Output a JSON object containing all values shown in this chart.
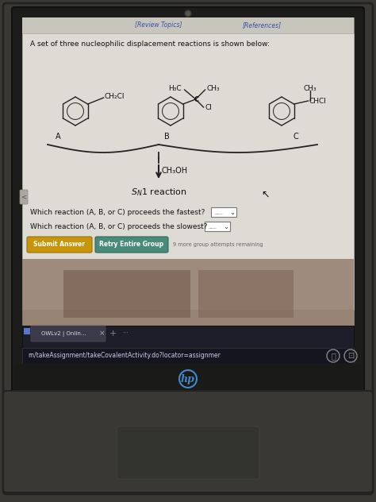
{
  "bg_outer": "#3a3835",
  "bg_laptop_body": "#2a2a28",
  "bg_screen_bezel": "#1a1a18",
  "bg_screen": "#c8c5bc",
  "bg_content": "#dddbd4",
  "bg_content2": "#e8e5de",
  "title_text": "A set of three nucleophilic displacement reactions is shown below:",
  "nav_text1": "[Review Topics]",
  "nav_text2": "[References]",
  "mol_A_label": "A",
  "mol_B_label": "B",
  "mol_C_label": "C",
  "mol_A_sub": "CH₂Cl",
  "mol_B_top_left": "H₃C",
  "mol_B_top_right": "CH₃",
  "mol_B_center": "C",
  "mol_B_bottom": "Cl",
  "mol_C_top": "CH₃",
  "mol_C_right": "CHCI",
  "reagent": "CH₃OH",
  "question1": "Which reaction (A, B, or C) proceeds the fastest?",
  "question2": "Which reaction (A, B, or C) proceeds the slowest?",
  "btn1_text": "Submit Answer",
  "btn2_text": "Retry Entire Group",
  "btn1_color": "#c8950a",
  "btn2_color": "#4a8a7a",
  "attempts_text": "9 more group attempts remaining",
  "browser_tab": "OWLv2 | Onlin...",
  "url_text": "rn/takeAssignment/takeCovalentActivity.do?locator=assignmer",
  "text_dark": "#111111",
  "text_link": "#3355aa",
  "ring_color": "#222222",
  "webcam_color": "#333333",
  "hp_logo_color": "#4488cc"
}
